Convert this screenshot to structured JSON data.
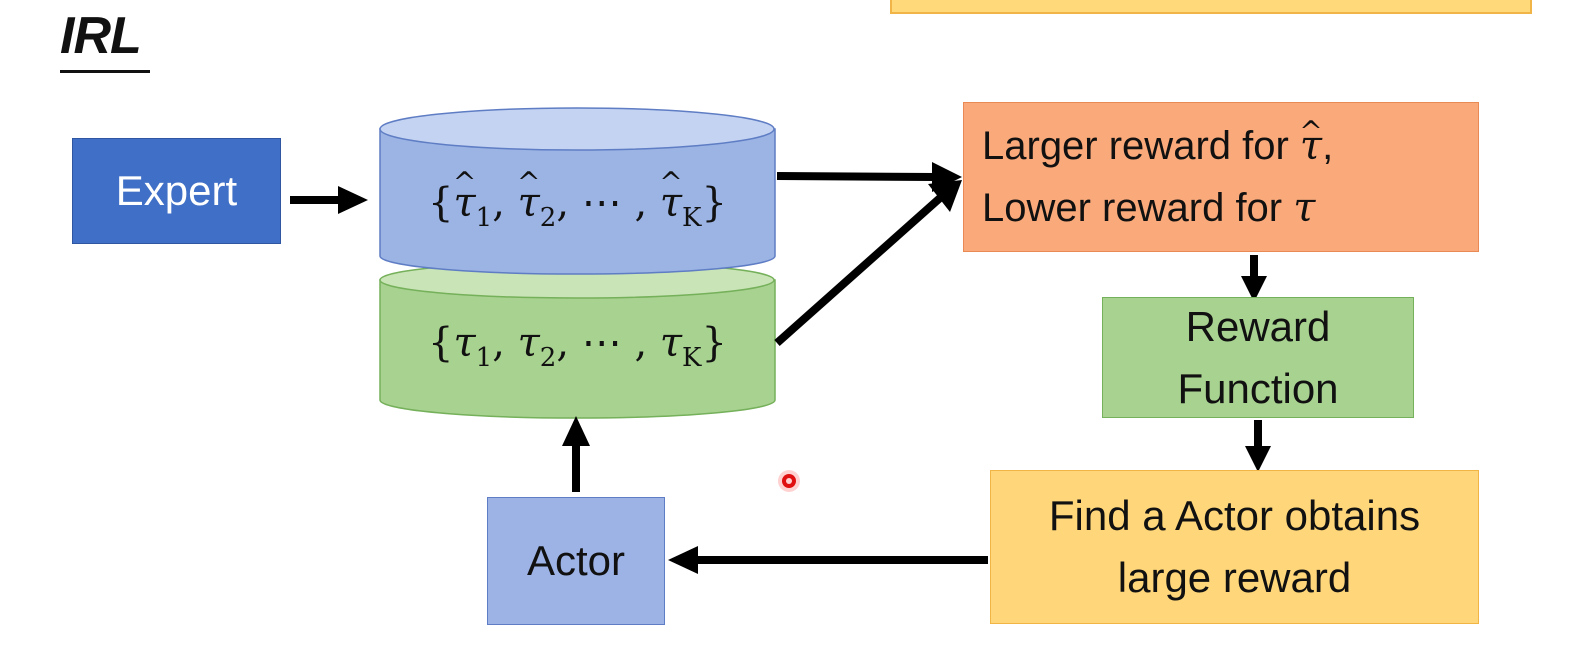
{
  "title": "IRL",
  "nodes": {
    "expert": "Expert",
    "actor": "Actor",
    "reward_criteria": {
      "line1_text": "Larger reward for ",
      "line1_symbol": "τ",
      "line1_suffix": ",",
      "line2_text": "Lower reward for ",
      "line2_symbol": "τ"
    },
    "reward_function": {
      "line1": "Reward",
      "line2": "Function"
    },
    "find_actor": {
      "line1": "Find a Actor obtains",
      "line2": "large reward"
    }
  },
  "trajectories": {
    "expert": {
      "open": "{",
      "items": [
        "τ",
        "τ",
        "⋯",
        "τ"
      ],
      "subscripts": [
        "1",
        "2",
        "",
        "K"
      ],
      "close": "}",
      "separator": ","
    },
    "actor": {
      "open": "{",
      "items": [
        "τ",
        "τ",
        "⋯",
        "τ"
      ],
      "subscripts": [
        "1",
        "2",
        "",
        "K"
      ],
      "close": "}",
      "separator": ","
    }
  },
  "colors": {
    "expert": "#3f6fc6",
    "actor": "#9db3e6",
    "reward_criteria": "#f9a97a",
    "reward_function": "#a8d290",
    "find_actor": "#ffd77a",
    "expert_cylinder": "#9bb4e4",
    "actor_cylinder": "#a8d290",
    "arrow": "#000000"
  }
}
